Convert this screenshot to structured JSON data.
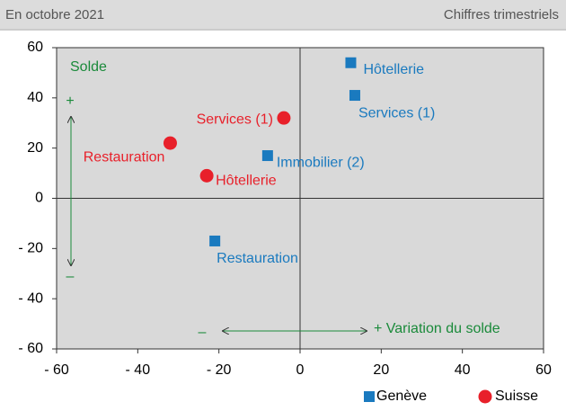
{
  "header": {
    "left": "En octobre 2021",
    "right": "Chiffres trimestriels"
  },
  "chart_data": {
    "type": "scatter",
    "xlim": [
      -60,
      60
    ],
    "xticks": [
      {
        "value": -60,
        "label": "- 60"
      },
      {
        "value": -40,
        "label": "- 40"
      },
      {
        "value": -20,
        "label": "- 20"
      },
      0,
      20,
      40,
      60
    ],
    "ylim": [
      -60,
      60
    ],
    "yticks": [
      {
        "value": -60,
        "label": "- 60"
      },
      {
        "value": -40,
        "label": "- 40"
      },
      {
        "value": -20,
        "label": "- 20"
      },
      0,
      20,
      40,
      60
    ],
    "series": [
      {
        "name": "Genève",
        "color": "#1a7abf",
        "marker": "square",
        "x": [
          12.5,
          13.5,
          -8,
          -21
        ],
        "values": [
          54,
          41,
          17,
          -17
        ],
        "labels": [
          "Hôtellerie",
          "Services (1)",
          "Immobilier (2)",
          "Restauration"
        ]
      },
      {
        "name": "Suisse",
        "color": "#e8202a",
        "marker": "circle",
        "x": [
          -4,
          -32,
          -23
        ],
        "values": [
          32,
          22,
          9
        ],
        "labels": [
          "Services (1)",
          "Restauration",
          "Hôtellerie"
        ]
      }
    ],
    "annotations": [
      "Solde",
      "+",
      "–",
      "–",
      "+ Variation du solde"
    ],
    "annotation_color": "#1a8a3a",
    "legend": "bottom-right"
  }
}
